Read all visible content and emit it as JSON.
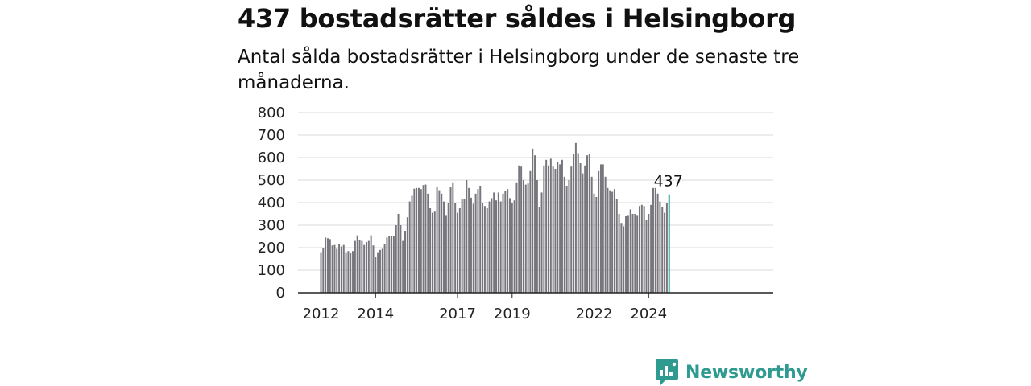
{
  "header": {
    "title": "437 bostadsrätter såldes i Helsingborg",
    "subtitle": "Antal sålda bostadsrätter i Helsingborg under de senaste tre månaderna."
  },
  "colors": {
    "bar": "#77767c",
    "highlight": "#26a69a",
    "grid": "#d9d9d9",
    "axis": "#222222",
    "brand": "#2e9a90"
  },
  "brand": {
    "name": "Newsworthy",
    "icon": "bar-chart-speech-bubble-icon"
  },
  "chart_data": {
    "type": "bar",
    "title": "437 bostadsrätter såldes i Helsingborg",
    "subtitle": "Antal sålda bostadsrätter i Helsingborg under de senaste tre månaderna.",
    "x_start": "2012-01",
    "x_frequency": "monthly",
    "xlabel": "",
    "ylabel": "",
    "ylim": [
      0,
      800
    ],
    "y_ticks": [
      0,
      100,
      200,
      300,
      400,
      500,
      600,
      700,
      800
    ],
    "x_ticks": [
      "2012",
      "2014",
      "2017",
      "2019",
      "2022",
      "2024"
    ],
    "grid": true,
    "annotation": {
      "label": "437",
      "value": 437
    },
    "values": [
      180,
      200,
      245,
      242,
      238,
      210,
      212,
      195,
      215,
      205,
      212,
      180,
      185,
      175,
      185,
      230,
      255,
      235,
      230,
      212,
      225,
      230,
      255,
      210,
      160,
      180,
      190,
      195,
      215,
      245,
      250,
      250,
      250,
      300,
      350,
      300,
      230,
      275,
      335,
      405,
      430,
      462,
      465,
      465,
      460,
      478,
      480,
      440,
      375,
      355,
      360,
      470,
      455,
      440,
      405,
      345,
      400,
      468,
      490,
      400,
      355,
      375,
      418,
      418,
      500,
      465,
      422,
      395,
      440,
      460,
      475,
      400,
      385,
      375,
      405,
      420,
      445,
      410,
      445,
      405,
      440,
      450,
      460,
      420,
      400,
      410,
      490,
      565,
      560,
      500,
      480,
      485,
      540,
      640,
      610,
      500,
      380,
      445,
      565,
      590,
      565,
      595,
      560,
      550,
      580,
      570,
      590,
      515,
      475,
      500,
      560,
      615,
      665,
      620,
      575,
      530,
      565,
      610,
      615,
      515,
      440,
      425,
      540,
      570,
      570,
      515,
      465,
      455,
      448,
      460,
      415,
      350,
      310,
      295,
      340,
      345,
      370,
      350,
      350,
      345,
      385,
      390,
      385,
      325,
      350,
      390,
      465,
      465,
      440,
      405,
      380,
      355,
      400,
      437
    ]
  }
}
